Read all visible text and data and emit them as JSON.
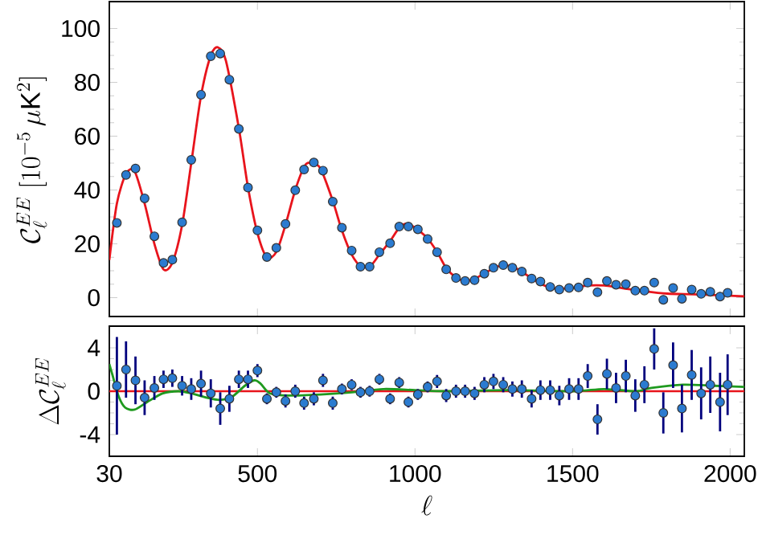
{
  "chart_data": [
    {
      "type": "scatter",
      "ylabel": "\\mathcal{C}_\\ell^{EE}\\ [10^{-5}\\,\\mu\\mathrm{K}^2]",
      "xlim": [
        30,
        2045
      ],
      "ylim": [
        -7,
        110
      ],
      "xticks": [
        30,
        500,
        1000,
        1500,
        2000
      ],
      "yticks": [
        0,
        20,
        40,
        60,
        80,
        100
      ],
      "tick_labels": "y",
      "series": [
        {
          "color": "#2b7bd0",
          "x": [
            54,
            83,
            113,
            142,
            173,
            202,
            230,
            261,
            290,
            321,
            352,
            382,
            411,
            441,
            470,
            500,
            530,
            560,
            589,
            620,
            648,
            679,
            708,
            739,
            768,
            799,
            827,
            856,
            887,
            921,
            950,
            979,
            1009,
            1040,
            1070,
            1099,
            1130,
            1159,
            1189,
            1220,
            1249,
            1280,
            1309,
            1339,
            1370,
            1398,
            1429,
            1458,
            1489,
            1519,
            1548,
            1579,
            1609,
            1638,
            1669,
            1699,
            1728,
            1759,
            1788,
            1819,
            1847,
            1878,
            1908,
            1937,
            1968,
            1992
          ],
          "values": [
            27.8,
            45.6,
            48,
            36.9,
            22.8,
            12.9,
            14.1,
            28,
            51.2,
            75.4,
            89.7,
            90.7,
            81,
            62.7,
            40.9,
            25,
            15.1,
            18.5,
            27.4,
            39.9,
            47.6,
            50.2,
            47.2,
            35.7,
            26,
            17.5,
            11.5,
            11.5,
            16.9,
            20.2,
            26.4,
            26.4,
            25.4,
            21.8,
            16.9,
            10.5,
            7.3,
            6.2,
            6.5,
            8.9,
            11.1,
            12.1,
            11.1,
            9.7,
            7.1,
            6.0,
            4.0,
            3.0,
            3.6,
            3.8,
            5.6,
            2.0,
            6.2,
            4.8,
            5.0,
            2.6,
            2.6,
            5.6,
            -0.8,
            3.6,
            -0.4,
            3.0,
            1.4,
            2.2,
            0.4,
            1.8
          ]
        },
        {
          "type": "line",
          "color": "#e8141c",
          "x": [
            30,
            54,
            83,
            110,
            142,
            173,
            202,
            230,
            261,
            290,
            321,
            352,
            375,
            400,
            441,
            470,
            500,
            530,
            560,
            589,
            620,
            650,
            670,
            700,
            739,
            768,
            799,
            830,
            860,
            887,
            921,
            950,
            975,
            1000,
            1040,
            1070,
            1099,
            1130,
            1159,
            1189,
            1220,
            1260,
            1290,
            1320,
            1360,
            1400,
            1440,
            1490,
            1550,
            1600,
            1660,
            1720,
            1800,
            1900,
            2045
          ],
          "values": [
            14,
            35,
            46,
            47,
            35,
            20,
            10.5,
            13,
            27,
            50,
            75,
            90,
            93,
            88,
            63,
            41,
            24,
            15,
            17,
            27,
            40,
            49,
            50,
            48,
            36,
            25,
            16,
            11.5,
            12,
            16,
            21,
            26,
            27.5,
            26,
            22,
            17,
            11,
            7.5,
            6.2,
            7,
            9,
            11.5,
            12,
            11,
            8,
            5,
            3.5,
            3.5,
            4.5,
            4.5,
            3.5,
            2.5,
            1.5,
            1.2,
            0.5
          ]
        }
      ]
    },
    {
      "type": "scatter",
      "xlabel": "\\ell",
      "ylabel": "\\Delta\\mathcal{C}_\\ell^{EE}",
      "xlim": [
        30,
        2045
      ],
      "ylim": [
        -6,
        6
      ],
      "xticks": [
        30,
        500,
        1000,
        1500,
        2000
      ],
      "yticks": [
        -4,
        0,
        4
      ],
      "ref_lines": [
        {
          "axis": "y",
          "value": 0,
          "color": "#e8141c"
        }
      ],
      "series": [
        {
          "type": "line",
          "color": "#1f9a1f",
          "x": [
            30,
            40,
            60,
            80,
            110,
            150,
            200,
            250,
            290,
            340,
            380,
            420,
            460,
            490,
            510,
            540,
            600,
            700,
            800,
            900,
            1000,
            1100,
            1300,
            1500,
            1600,
            1700,
            1750,
            1850,
            1950,
            2045
          ],
          "values": [
            2.5,
            1.5,
            -0.5,
            -1.5,
            -1.7,
            -1.0,
            -0.2,
            0.0,
            -0.2,
            -0.6,
            -0.8,
            -0.5,
            0.5,
            1.0,
            0.7,
            -0.2,
            -0.4,
            -0.3,
            -0.1,
            0.2,
            0.1,
            0.0,
            0.1,
            0.0,
            0.2,
            0.0,
            0.3,
            0.6,
            0.5,
            0.4
          ]
        },
        {
          "color": "#2b7bd0",
          "x": [
            54,
            83,
            113,
            142,
            173,
            202,
            230,
            261,
            290,
            321,
            352,
            382,
            411,
            441,
            470,
            500,
            530,
            560,
            589,
            620,
            648,
            679,
            708,
            739,
            768,
            799,
            827,
            856,
            887,
            921,
            950,
            979,
            1009,
            1040,
            1070,
            1099,
            1130,
            1159,
            1189,
            1220,
            1249,
            1280,
            1309,
            1339,
            1370,
            1398,
            1429,
            1458,
            1489,
            1519,
            1548,
            1579,
            1609,
            1638,
            1669,
            1699,
            1728,
            1759,
            1788,
            1819,
            1847,
            1878,
            1908,
            1937,
            1968,
            1992
          ],
          "values": [
            0.5,
            2.0,
            1.0,
            -0.6,
            0.3,
            1.1,
            1.2,
            0.5,
            0.2,
            0.7,
            -0.2,
            -1.6,
            -0.7,
            1.1,
            1.1,
            1.9,
            -0.7,
            -0.1,
            -0.9,
            0.0,
            -1.1,
            -0.7,
            1.0,
            -1.1,
            0.2,
            0.6,
            -0.1,
            0.0,
            1.1,
            -0.7,
            0.8,
            -1.0,
            -0.3,
            0.4,
            0.9,
            -0.4,
            0.0,
            0.0,
            -0.2,
            0.6,
            0.9,
            0.6,
            0.2,
            0.2,
            -0.7,
            0.1,
            0.1,
            -0.4,
            0.2,
            0.2,
            1.4,
            -2.6,
            1.6,
            0.3,
            1.4,
            -0.4,
            0.6,
            3.9,
            -2.0,
            2.4,
            -1.6,
            1.5,
            -0.2,
            0.6,
            -1.0,
            0.6
          ],
          "errors": [
            4.5,
            2.6,
            2.2,
            1.6,
            1.1,
            0.8,
            0.8,
            0.9,
            1.0,
            1.2,
            1.3,
            1.5,
            1.2,
            0.8,
            0.8,
            0.6,
            0.5,
            0.5,
            0.6,
            0.6,
            0.6,
            0.6,
            0.6,
            0.6,
            0.5,
            0.5,
            0.5,
            0.5,
            0.5,
            0.5,
            0.5,
            0.5,
            0.5,
            0.5,
            0.6,
            0.6,
            0.6,
            0.6,
            0.6,
            0.7,
            0.7,
            0.7,
            0.7,
            0.8,
            0.8,
            0.9,
            0.9,
            0.9,
            1.0,
            1.0,
            1.1,
            1.4,
            1.4,
            1.4,
            1.5,
            1.5,
            1.7,
            1.9,
            1.9,
            2.1,
            2.2,
            2.3,
            2.4,
            2.6,
            2.7,
            2.8
          ]
        }
      ]
    }
  ]
}
